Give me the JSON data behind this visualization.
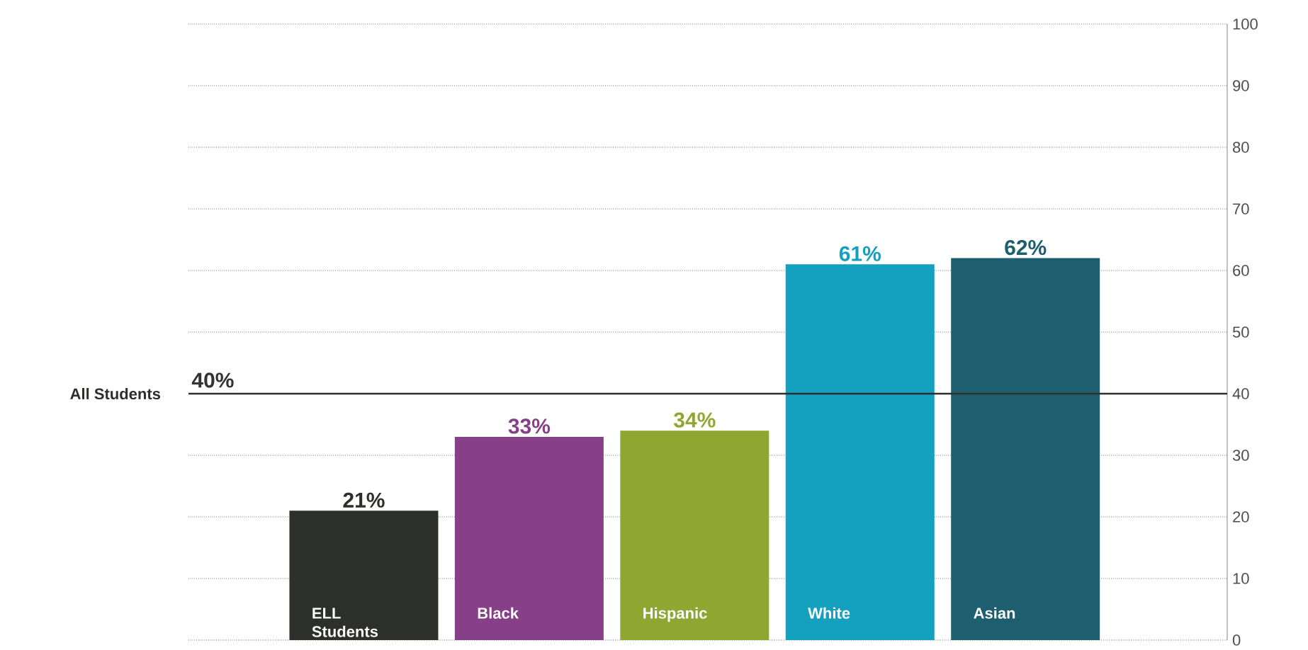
{
  "chart_data": {
    "type": "bar",
    "categories": [
      "ELL Students",
      "Black",
      "Hispanic",
      "White",
      "Asian"
    ],
    "values": [
      21,
      33,
      34,
      61,
      62
    ],
    "colors": [
      "#2d2f2a",
      "#864087",
      "#8fa630",
      "#14a1c0",
      "#1d5f6e"
    ],
    "value_labels": [
      "21%",
      "33%",
      "34%",
      "61%",
      "62%"
    ],
    "ylim": [
      0,
      100
    ],
    "yticks": [
      0,
      10,
      20,
      30,
      40,
      50,
      60,
      70,
      80,
      90,
      100
    ],
    "grid": "y",
    "ref_lines": [
      {
        "axis": "y",
        "value": 40,
        "label": "All Students",
        "color": "#2d2f2a"
      }
    ],
    "annotations": [
      {
        "text": "40%",
        "y": 40
      }
    ]
  }
}
